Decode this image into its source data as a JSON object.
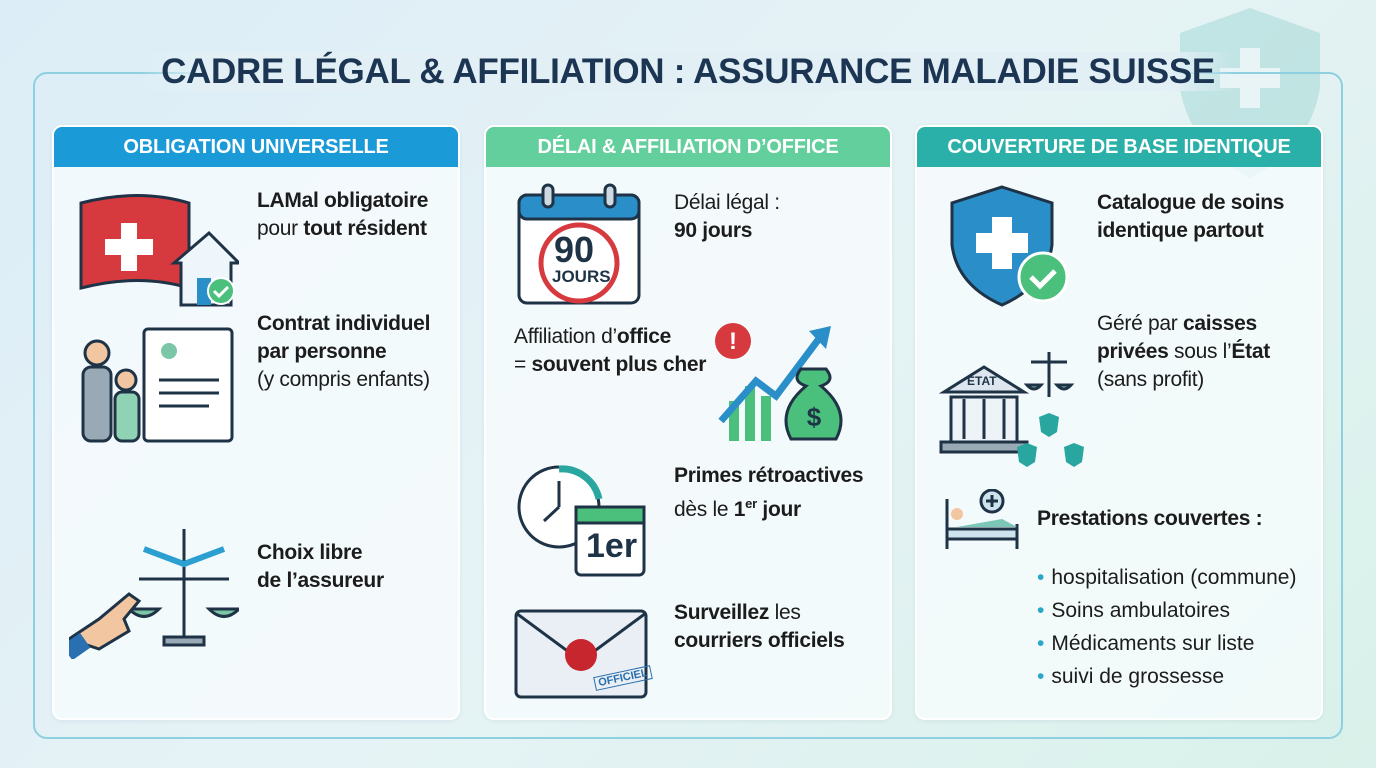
{
  "title": "CADRE LÉGAL & AFFILIATION : ASSURANCE MALADIE SUISSE",
  "colors": {
    "blue": "#1a9ad6",
    "green": "#5fcf9a",
    "teal": "#2ab0a8",
    "title": "#1b3553",
    "red": "#d63a3f"
  },
  "panels": [
    {
      "header": "OBLIGATION UNIVERSELLE",
      "items": [
        {
          "icon": "swiss-flag-house-icon",
          "lines": [
            [
              {
                "t": "LAMal obligatoire",
                "b": true
              }
            ],
            [
              {
                "t": "pour "
              },
              {
                "t": "tout résident",
                "b": true
              }
            ]
          ]
        },
        {
          "icon": "family-contract-icon",
          "lines": [
            [
              {
                "t": "Contrat individuel",
                "b": true
              }
            ],
            [
              {
                "t": "par personne",
                "b": true
              }
            ],
            [
              {
                "t": "(y compris enfants)"
              }
            ]
          ]
        },
        {
          "icon": "hand-scale-choice-icon",
          "lines": [
            [
              {
                "t": "Choix libre",
                "b": true
              }
            ],
            [
              {
                "t": "de l’assureur",
                "b": true
              }
            ]
          ]
        }
      ]
    },
    {
      "header": "DÉLAI & AFFILIATION D’OFFICE",
      "items": [
        {
          "icon": "calendar-90-days-icon",
          "calendar_number": "90",
          "calendar_label": "JOURS",
          "lines": [
            [
              {
                "t": "Délai légal :"
              }
            ],
            [
              {
                "t": "90 jours",
                "b": true
              }
            ]
          ]
        },
        {
          "icon": "rising-cost-chart-icon",
          "lines": [
            [
              {
                "t": "Affiliation d’"
              },
              {
                "t": "office",
                "b": true
              }
            ],
            [
              {
                "t": "= "
              },
              {
                "t": "souvent plus cher",
                "b": true
              }
            ]
          ]
        },
        {
          "icon": "clock-calendar-icon",
          "calendar_label": "1er",
          "lines": [
            [
              {
                "t": "Primes rétroactives",
                "b": true
              }
            ],
            [
              {
                "t": "dès le "
              },
              {
                "t": "1",
                "b": true
              },
              {
                "t": "er",
                "sup": true
              },
              {
                "t": " jour",
                "b": true
              }
            ]
          ]
        },
        {
          "icon": "official-envelope-icon",
          "stamp": "OFFICIEL",
          "lines": [
            [
              {
                "t": "Surveillez",
                "b": true
              },
              {
                "t": " les"
              }
            ],
            [
              {
                "t": "courriers officiels",
                "b": true
              }
            ]
          ]
        }
      ]
    },
    {
      "header": "COUVERTURE DE BASE IDENTIQUE",
      "items": [
        {
          "icon": "shield-check-icon",
          "lines": [
            [
              {
                "t": "Catalogue de soins",
                "b": true
              }
            ],
            [
              {
                "t": "identique partout",
                "b": true
              }
            ]
          ]
        },
        {
          "icon": "state-building-icon",
          "building_label": "ÉTAT",
          "lines": [
            [
              {
                "t": "Géré par "
              },
              {
                "t": "caisses",
                "b": true
              }
            ],
            [
              {
                "t": "privées",
                "b": true
              },
              {
                "t": " sous l’"
              },
              {
                "t": "État",
                "b": true
              }
            ],
            [
              {
                "t": "(sans profit)"
              }
            ]
          ]
        },
        {
          "icon": "hospital-bed-icon",
          "lines": [
            [
              {
                "t": "Prestations couvertes :",
                "b": true
              }
            ]
          ]
        }
      ],
      "list": [
        "hospitalisation (commune)",
        "Soins ambulatoires",
        "Médicaments sur liste",
        "suivi de grossesse"
      ]
    }
  ]
}
